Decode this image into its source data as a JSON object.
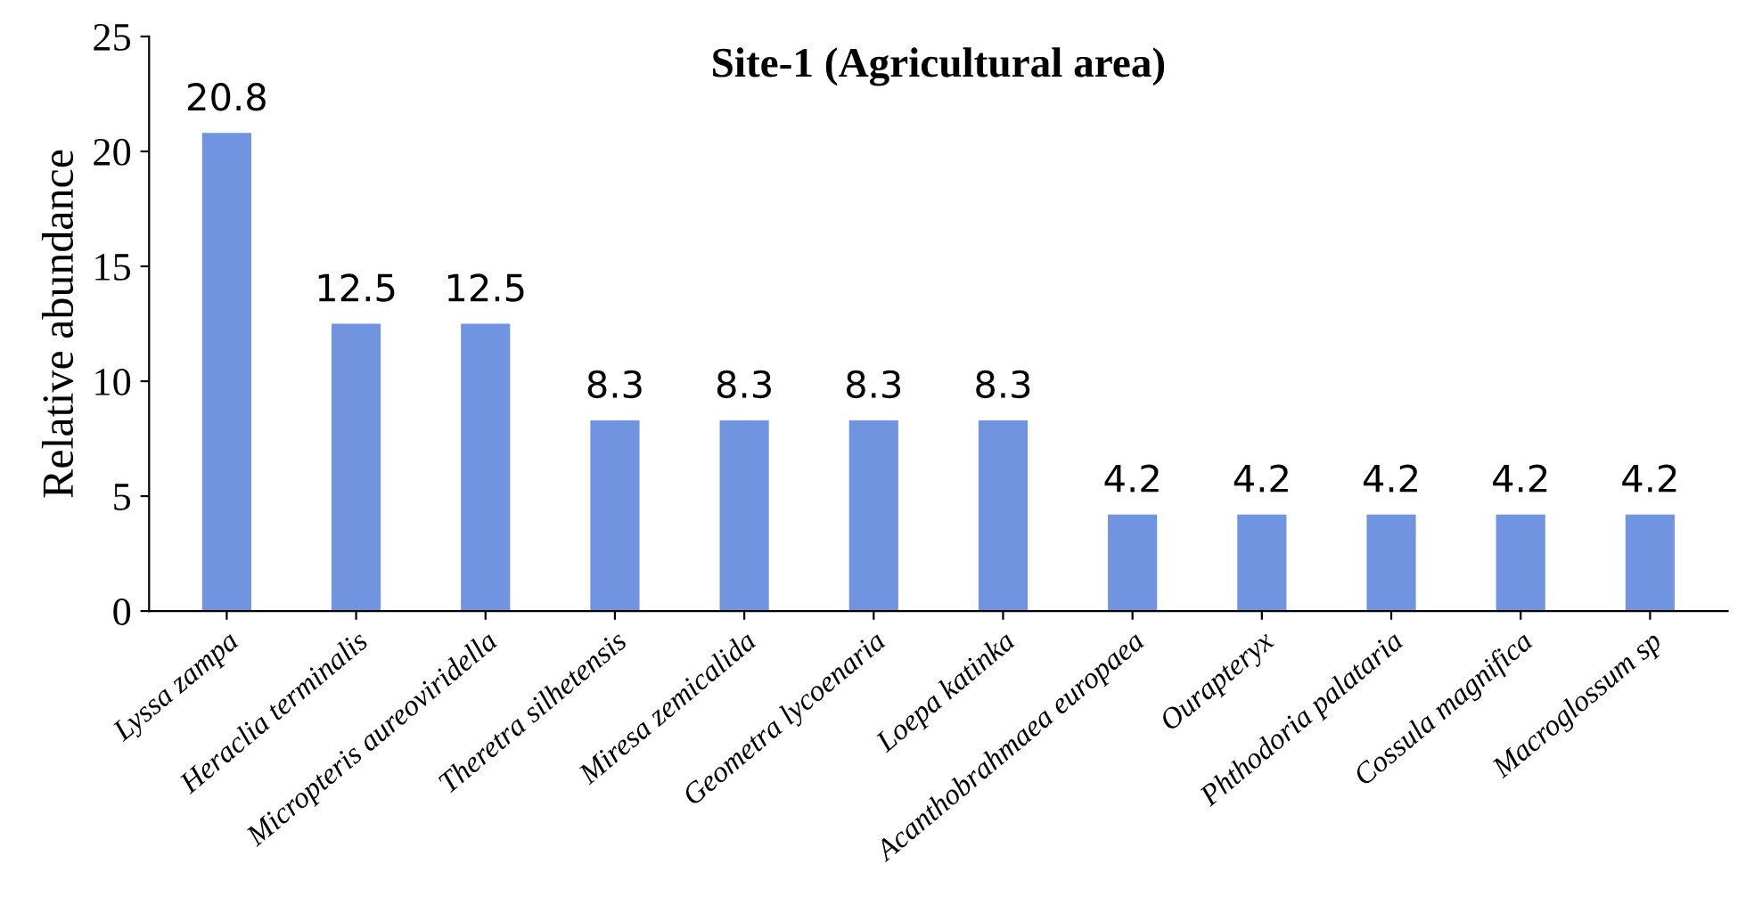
{
  "chart_data": {
    "type": "bar",
    "title": "Site-1 (Agricultural area)",
    "ylabel": "Relative abundance",
    "categories": [
      "Lyssa zampa",
      "Heraclia terminalis",
      "Micropteris aureoviridella",
      "Theretra silhetensis",
      "Miresa zemicalida",
      "Geometra lycoenaria",
      "Loepa katinka",
      "Acanthobrahmaea europaea",
      "Ourapteryx",
      "Phthodoria palataria",
      "Cossula magnifica",
      "Macroglossum sp"
    ],
    "values": [
      20.8,
      12.5,
      12.5,
      8.3,
      8.3,
      8.3,
      8.3,
      4.2,
      4.2,
      4.2,
      4.2,
      4.2
    ],
    "color": "#7094e0",
    "ylim": [
      0,
      25
    ],
    "yticks": [
      0,
      5,
      10,
      15,
      20,
      25
    ],
    "grid": false,
    "data_labels": true
  }
}
